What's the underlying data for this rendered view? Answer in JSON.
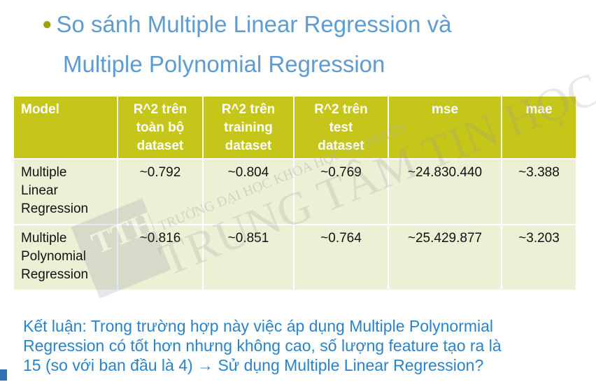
{
  "slide": {
    "title_bullet": "●",
    "title_line1": "So sánh Multiple Linear Regression và",
    "title_line2": "Multiple Polynomial Regression"
  },
  "table": {
    "headers": [
      "Model",
      "R^2 trên toàn bộ dataset",
      "R^2 trên training dataset",
      "R^2 trên test dataset",
      "mse",
      "mae"
    ],
    "header_lines": [
      [
        "Model"
      ],
      [
        "R^2 trên",
        "toàn bộ",
        "dataset"
      ],
      [
        "R^2 trên",
        "training",
        "dataset"
      ],
      [
        "R^2 trên",
        "test",
        "dataset"
      ],
      [
        "mse"
      ],
      [
        "mae"
      ]
    ],
    "rows": [
      {
        "model_lines": [
          "Multiple",
          "Linear",
          "Regression"
        ],
        "r2_all": "~0.792",
        "r2_train": "~0.804",
        "r2_test": "~0.769",
        "mse": "~24.830.440",
        "mae": "~3.388"
      },
      {
        "model_lines": [
          "Multiple",
          "Polynomial",
          "Regression"
        ],
        "r2_all": "~0.816",
        "r2_train": "~0.851",
        "r2_test": "~0.764",
        "mse": "~25.429.877",
        "mae": "~3.203"
      }
    ]
  },
  "conclusion": {
    "line1": "Kết luận: Trong trường hợp này việc áp dụng Multiple Polynormial",
    "line2": "Regression có tốt hơn nhưng không cao, số lượng feature tạo ra là",
    "line3": "15 (so với ban đầu là 4)  → Sử dụng Multiple Linear Regression?"
  },
  "watermark": {
    "line_school": "TRƯỜNG ĐẠI HỌC KHOA HỌC TỰ NHIÊN",
    "line_center": "TRUNG TÂM TIN HỌC",
    "logo_text": "TTH"
  },
  "colors": {
    "title": "#5e9bd0",
    "bullet": "#9aa400",
    "header_bg": "#c5c51a",
    "row_bg": "#eef0d6",
    "conclusion": "#2a83c9"
  }
}
